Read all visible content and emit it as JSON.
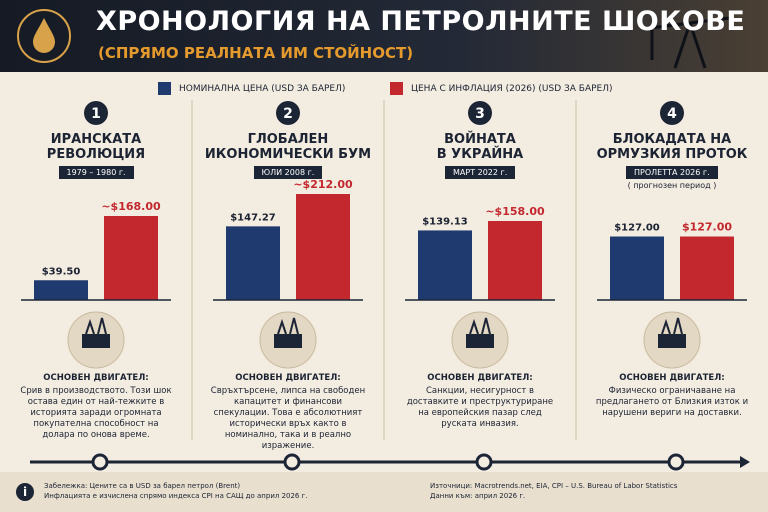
{
  "header": {
    "title": "ХРОНОЛОГИЯ НА ПЕТРОЛНИТЕ ШОКОВЕ",
    "subtitle": "(СПРЯМО РЕАЛНАТА ИМ СТОЙНОСТ)"
  },
  "legend": [
    {
      "name": "НОМИНАЛНА ЦЕНА (USD ЗА БАРЕЛ)",
      "color": "#1f3a6e"
    },
    {
      "name": "ЦЕНА С ИНФЛАЦИЯ (2026) (USD ЗА БАРЕЛ)",
      "color": "#c3282f"
    }
  ],
  "chart_data": [
    {
      "type": "bar",
      "number": 1,
      "title": [
        "ИРАНСКАТА",
        "РЕВОЛЮЦИЯ"
      ],
      "date": "1979 – 1980 г.",
      "values": [
        39.5,
        168
      ],
      "value_labels": [
        "$39.50",
        "~$168.00"
      ],
      "driver_label": "ОСНОВЕН ДВИГАТЕЛ:",
      "driver": "Срив в производството. Този шок остава един от най-тежките в историята заради огромната покупателна способност на долара по онова време."
    },
    {
      "type": "bar",
      "number": 2,
      "title": [
        "ГЛОБАЛЕН",
        "ИКОНОМИЧЕСКИ БУМ"
      ],
      "date": "ЮЛИ 2008 г.",
      "values": [
        147.27,
        212
      ],
      "value_labels": [
        "$147.27",
        "~$212.00"
      ],
      "driver_label": "ОСНОВЕН ДВИГАТЕЛ:",
      "driver": "Свръхтърсене, липса на свободен капацитет и финансови спекулации. Това е абсолютният исторически връх както в номинално, така и в реално изражение."
    },
    {
      "type": "bar",
      "number": 3,
      "title": [
        "ВОЙНАТА",
        "В УКРАЙНА"
      ],
      "date": "МАРТ 2022 г.",
      "values": [
        139.13,
        158
      ],
      "value_labels": [
        "$139.13",
        "~$158.00"
      ],
      "driver_label": "ОСНОВЕН ДВИГАТЕЛ:",
      "driver": "Санкции, несигурност в доставките и преструктуриране на европейския пазар след руската инвазия."
    },
    {
      "type": "bar",
      "number": 4,
      "title": [
        "БЛОКАДАТА НА",
        "ОРМУЗКИЯ ПРОТОК"
      ],
      "date": "ПРОЛЕТТА 2026 г.",
      "note": "( прогнозен период )",
      "values": [
        127,
        127
      ],
      "value_labels": [
        "$127.00",
        "$127.00"
      ],
      "driver_label": "ОСНОВЕН ДВИГАТЕЛ:",
      "driver": "Физическо ограничаване на предлагането от Близкия изток и нарушени вериги на доставки."
    }
  ],
  "footer": {
    "note": [
      "Забележка: Цените са в USD за барел петрол (Brent)",
      "Инфлацията е изчислена спрямо индекса CPI на САЩ до април 2026 г."
    ],
    "sources": [
      "Източници: Macrotrends.net, EIA, CPI – U.S. Bureau of Labor Statistics",
      "Данни към: април 2026 г."
    ]
  }
}
